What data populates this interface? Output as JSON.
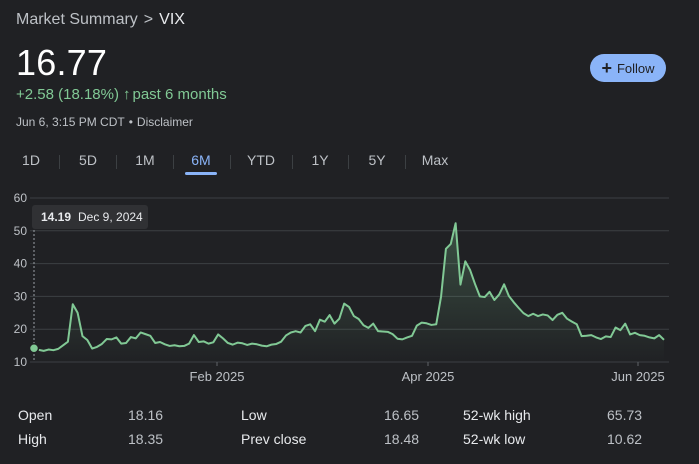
{
  "breadcrumb": {
    "parent": "Market Summary",
    "separator": ">",
    "current": "VIX"
  },
  "price": "16.77",
  "change": {
    "text": "+2.58 (18.18%)",
    "arrow": "↑",
    "period": "past 6 months"
  },
  "meta": {
    "timestamp": "Jun 6, 3:15 PM CDT",
    "dot": "•",
    "disclaimer": "Disclaimer"
  },
  "follow_label": "Follow",
  "tabs": [
    "1D",
    "5D",
    "1M",
    "6M",
    "YTD",
    "1Y",
    "5Y",
    "Max"
  ],
  "active_tab": "6M",
  "colors": {
    "line": "#81c995",
    "accent": "#8ab4f8",
    "background": "#202124"
  },
  "chart_data": {
    "type": "line",
    "ylim": [
      10,
      60
    ],
    "yticks": [
      10,
      20,
      30,
      40,
      50,
      60
    ],
    "xtick_labels": [
      "Feb 2025",
      "Apr 2025",
      "Jun 2025"
    ],
    "tooltip": {
      "value": "14.19",
      "date": "Dec 9, 2024"
    },
    "values": [
      14.19,
      13.7,
      13.4,
      13.8,
      13.6,
      14.0,
      15.1,
      16.2,
      27.6,
      25.0,
      17.9,
      16.7,
      14.1,
      14.6,
      15.5,
      17.0,
      16.9,
      17.5,
      15.6,
      15.8,
      17.6,
      17.2,
      19.0,
      18.5,
      18.0,
      15.8,
      16.1,
      15.4,
      14.9,
      15.1,
      14.8,
      14.9,
      15.6,
      18.2,
      16.1,
      16.3,
      15.6,
      16.0,
      18.4,
      17.2,
      15.8,
      15.3,
      15.9,
      15.7,
      15.2,
      15.6,
      15.4,
      15.0,
      14.8,
      15.3,
      15.5,
      16.2,
      18.1,
      19.0,
      19.4,
      19.0,
      21.0,
      21.5,
      19.4,
      22.9,
      22.3,
      24.3,
      21.7,
      23.2,
      27.8,
      26.8,
      24.0,
      23.1,
      21.2,
      20.4,
      21.7,
      19.4,
      19.3,
      19.2,
      18.5,
      17.1,
      16.9,
      17.5,
      18.0,
      21.1,
      22.0,
      21.8,
      21.3,
      21.5,
      30.0,
      44.5,
      46.0,
      52.3,
      33.6,
      40.7,
      38.0,
      33.8,
      30.0,
      29.8,
      31.4,
      28.9,
      30.6,
      33.7,
      30.1,
      28.2,
      26.5,
      24.9,
      24.0,
      24.7,
      24.0,
      24.5,
      24.2,
      22.8,
      24.4,
      25.0,
      23.2,
      22.3,
      21.5,
      17.9,
      18.0,
      18.2,
      17.5,
      17.0,
      17.8,
      17.6,
      20.5,
      19.7,
      21.7,
      18.4,
      18.9,
      18.2,
      18.0,
      17.5,
      17.2,
      18.2,
      16.77
    ]
  },
  "stats": [
    {
      "label": "Open",
      "value": "18.16"
    },
    {
      "label": "High",
      "value": "18.35"
    },
    {
      "label": "Low",
      "value": "16.65"
    },
    {
      "label": "Prev close",
      "value": "18.48"
    },
    {
      "label": "52-wk high",
      "value": "65.73"
    },
    {
      "label": "52-wk low",
      "value": "10.62"
    }
  ]
}
